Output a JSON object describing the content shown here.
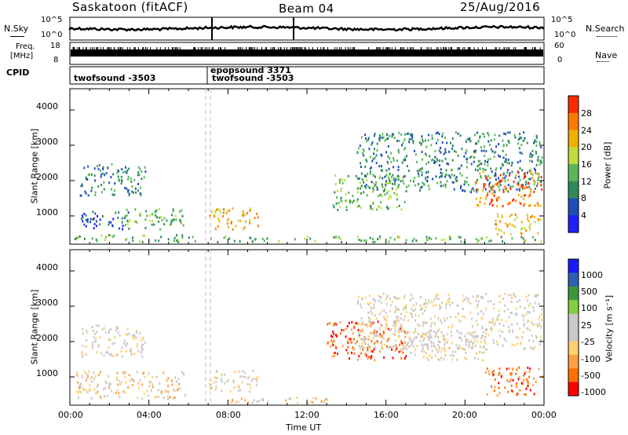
{
  "header": {
    "station": "Saskatoon (fitACF)",
    "beam": "Beam 04",
    "date": "25/Aug/2016"
  },
  "top_panels": {
    "nsky_label": "N.Sky",
    "nsky_ticks": [
      "10^5",
      "10^0"
    ],
    "nsearch_label": "N.Search",
    "nsearch_ticks": [
      "10^5",
      "10^0"
    ],
    "freq_label": "Freq.",
    "freq_unit": "[MHz]",
    "freq_ticks": [
      "18",
      "8"
    ],
    "nave_label": "Nave",
    "nave_ticks": [
      "60",
      "0"
    ],
    "cpid_label": "CPID",
    "cpid_segments": [
      {
        "text": "twofsound -3503",
        "start_hour": 0,
        "end_hour": 7.0
      },
      {
        "text": "epopsound 3371",
        "start_hour": 6.9,
        "end_hour": 7.1
      },
      {
        "text": "twofsound -3503",
        "start_hour": 7.1,
        "end_hour": 24
      }
    ]
  },
  "colors": {
    "power": [
      "#1f1fff",
      "#1e4fb8",
      "#2f8a5a",
      "#58b858",
      "#bfdc3c",
      "#f0b000",
      "#ff7a00",
      "#ff2a00"
    ],
    "velocity": [
      "#ff0000",
      "#ff7000",
      "#ffa040",
      "#ffd070",
      "#c8c8c8",
      "#c8c8c8",
      "#80d040",
      "#3a9a3a",
      "#2f5fb0",
      "#1a1aff"
    ]
  },
  "chart_data": [
    {
      "type": "heatmap",
      "name": "power",
      "ylabel": "Slant Range [km]",
      "yticks": [
        "1000",
        "2000",
        "3000",
        "4000"
      ],
      "ylim": [
        200,
        4600
      ],
      "xlim": [
        0,
        24
      ],
      "colorbar_label": "Power [dB]",
      "colorbar_ticks": [
        "4",
        "8",
        "12",
        "16",
        "20",
        "24",
        "28"
      ],
      "regions": [
        {
          "t0": 0.5,
          "t1": 3.8,
          "r0": 1600,
          "r1": 2500,
          "level": 2
        },
        {
          "t0": 0.5,
          "t1": 3.0,
          "r0": 650,
          "r1": 1150,
          "level": 1
        },
        {
          "t0": 2.6,
          "t1": 5.8,
          "r0": 650,
          "r1": 1250,
          "level": 3
        },
        {
          "t0": 0.2,
          "t1": 6.5,
          "r0": 250,
          "r1": 500,
          "level": 3
        },
        {
          "t0": 7.0,
          "t1": 9.5,
          "r0": 650,
          "r1": 1250,
          "level": 5
        },
        {
          "t0": 7.0,
          "t1": 24,
          "r0": 200,
          "r1": 450,
          "level": 3
        },
        {
          "t0": 13.3,
          "t1": 17.0,
          "r0": 1200,
          "r1": 2200,
          "level": 3
        },
        {
          "t0": 14.5,
          "t1": 24,
          "r0": 1700,
          "r1": 3400,
          "level": 2
        },
        {
          "t0": 20.5,
          "t1": 24,
          "r0": 1300,
          "r1": 2300,
          "level": 6
        },
        {
          "t0": 21.5,
          "t1": 24,
          "r0": 500,
          "r1": 1100,
          "level": 5
        }
      ]
    },
    {
      "type": "heatmap",
      "name": "velocity",
      "ylabel": "Slant Range [km]",
      "xlabel": "Time UT",
      "yticks": [
        "1000",
        "2000",
        "3000",
        "4000"
      ],
      "xticks": [
        "00:00",
        "04:00",
        "08:00",
        "12:00",
        "16:00",
        "20:00",
        "00:00"
      ],
      "ylim": [
        200,
        4600
      ],
      "xlim": [
        0,
        24
      ],
      "colorbar_label": "Velocity [m s⁻¹]",
      "colorbar_ticks": [
        "1000",
        "500",
        "100",
        "25",
        "-25",
        "-100",
        "-500",
        "-1000"
      ],
      "regions": [
        {
          "t0": 0.5,
          "t1": 3.8,
          "r0": 1600,
          "r1": 2500,
          "level": 4
        },
        {
          "t0": 0.3,
          "t1": 5.8,
          "r0": 400,
          "r1": 1200,
          "level": 3
        },
        {
          "t0": 7.0,
          "t1": 9.5,
          "r0": 600,
          "r1": 1250,
          "level": 4
        },
        {
          "t0": 8.0,
          "t1": 13.0,
          "r0": 200,
          "r1": 450,
          "level": 3
        },
        {
          "t0": 13.0,
          "t1": 17.0,
          "r0": 1500,
          "r1": 2600,
          "level": 1
        },
        {
          "t0": 14.5,
          "t1": 24,
          "r0": 1800,
          "r1": 3400,
          "level": 4
        },
        {
          "t0": 21.0,
          "t1": 24,
          "r0": 500,
          "r1": 1300,
          "level": 1
        },
        {
          "t0": 17.0,
          "t1": 21.0,
          "r0": 1500,
          "r1": 2300,
          "level": 4
        }
      ]
    }
  ]
}
